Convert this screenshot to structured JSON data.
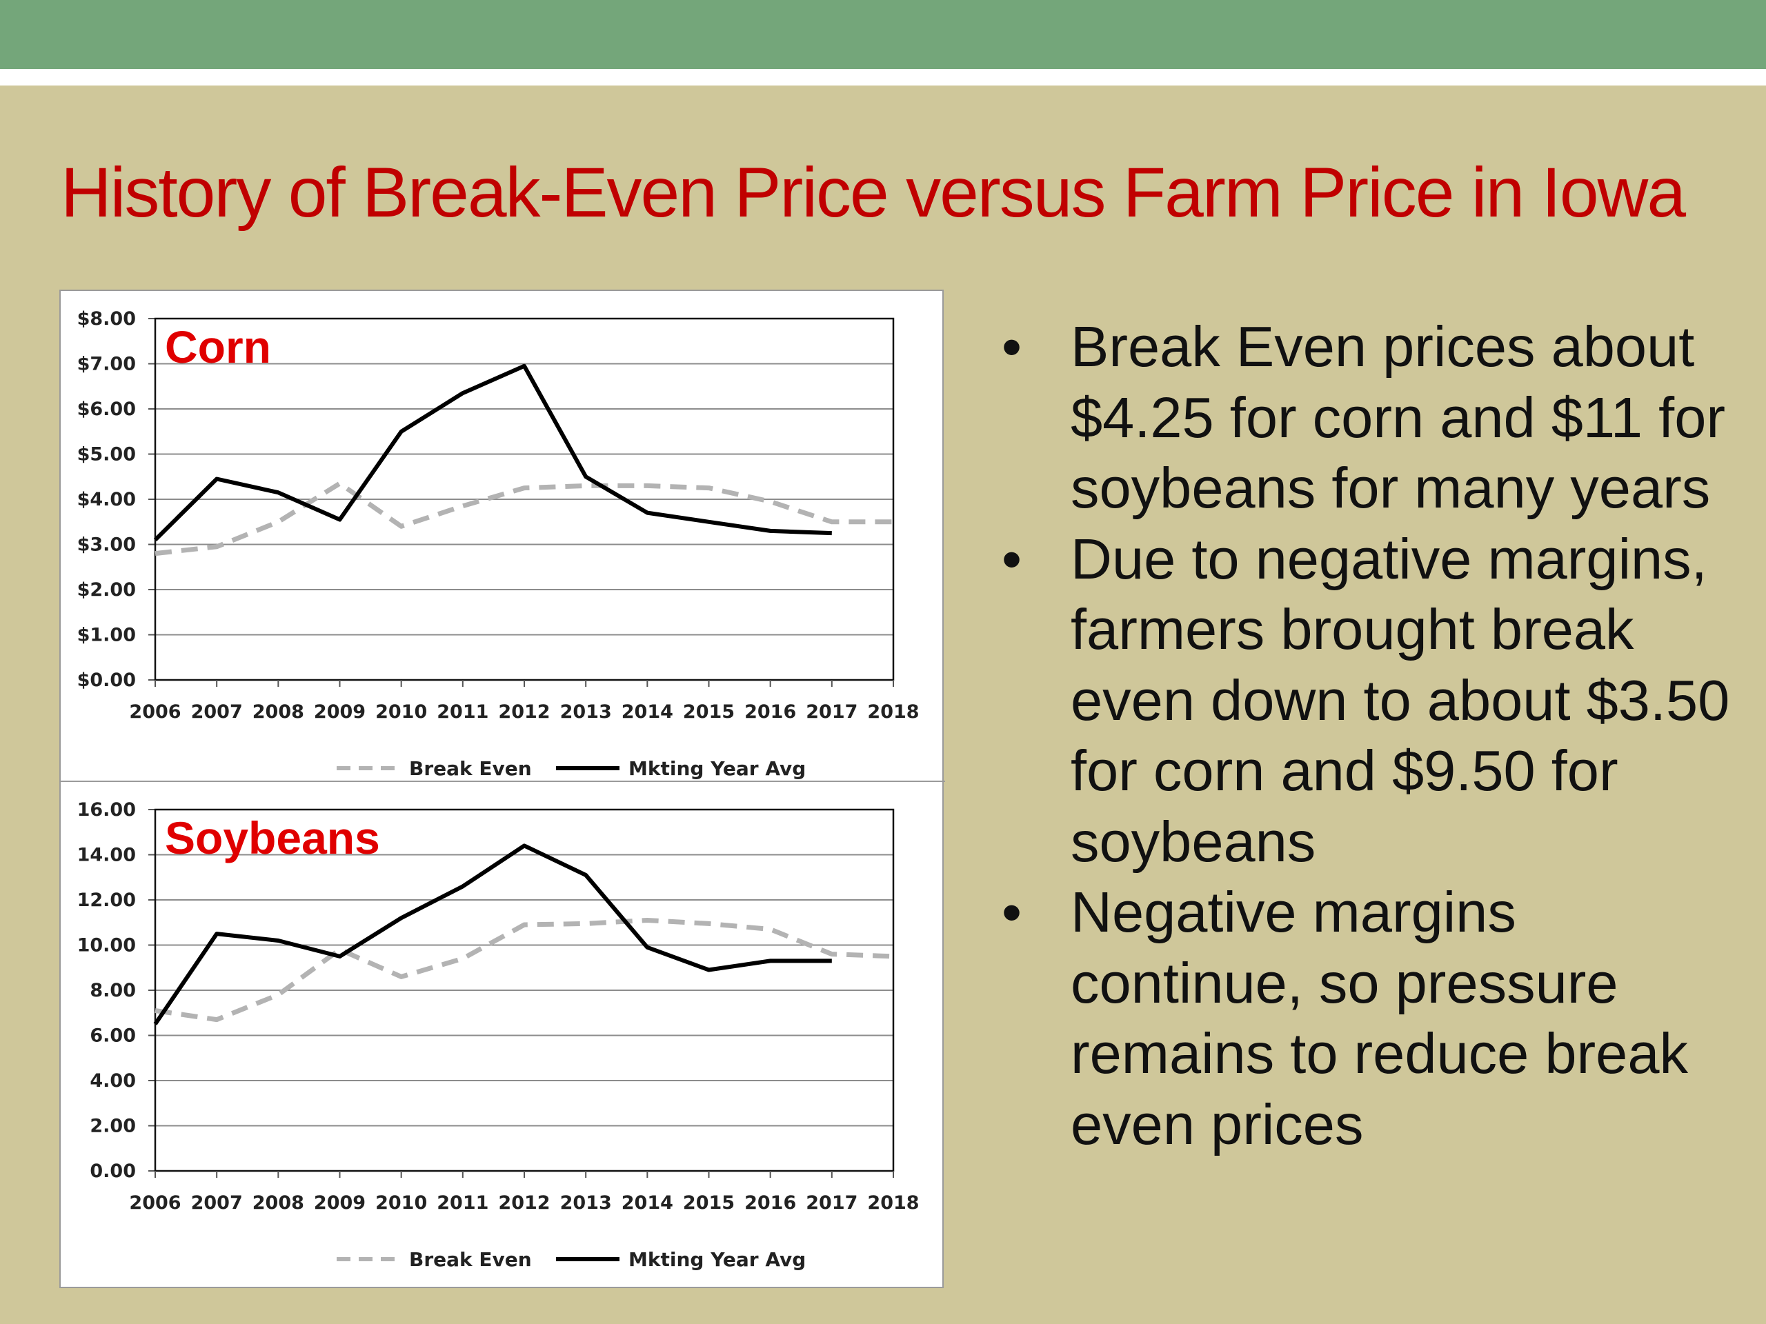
{
  "slide": {
    "title": "History of Break-Even Price versus Farm Price in Iowa",
    "bullets": [
      "Break Even prices about $4.25 for corn and $11 for soybeans for many years",
      "Due to negative margins, farmers brought break even down to about $3.50 for corn and $9.50 for soybeans",
      "Negative margins continue, so pressure remains to reduce break even prices"
    ],
    "bullet_char": "•"
  },
  "colors": {
    "background": "#cfc79a",
    "top_band": "#74a67a",
    "title": "#c00000",
    "chart_label": "#e00000",
    "break_even": "#b3b3b3",
    "market_avg": "#000000"
  },
  "chart_data": [
    {
      "type": "line",
      "label": "Corn",
      "categories": [
        "2006",
        "2007",
        "2008",
        "2009",
        "2010",
        "2011",
        "2012",
        "2013",
        "2014",
        "2015",
        "2016",
        "2017",
        "2018"
      ],
      "y_tick_labels": [
        "$0.00",
        "$1.00",
        "$2.00",
        "$3.00",
        "$4.00",
        "$5.00",
        "$6.00",
        "$7.00",
        "$8.00"
      ],
      "ylim": [
        0,
        8
      ],
      "grid": true,
      "legend_position": "bottom",
      "series": [
        {
          "name": "Break Even",
          "style": "dashed",
          "values": [
            2.8,
            2.95,
            3.5,
            4.35,
            3.4,
            3.85,
            4.25,
            4.3,
            4.3,
            4.25,
            3.95,
            3.5,
            3.5
          ]
        },
        {
          "name": "Mkting Year Avg",
          "style": "solid",
          "values": [
            3.1,
            4.45,
            4.15,
            3.55,
            5.5,
            6.35,
            6.95,
            4.5,
            3.7,
            3.5,
            3.3,
            3.25,
            null
          ]
        }
      ]
    },
    {
      "type": "line",
      "label": "Soybeans",
      "categories": [
        "2006",
        "2007",
        "2008",
        "2009",
        "2010",
        "2011",
        "2012",
        "2013",
        "2014",
        "2015",
        "2016",
        "2017",
        "2018"
      ],
      "y_tick_labels": [
        "0.00",
        "2.00",
        "4.00",
        "6.00",
        "8.00",
        "10.00",
        "12.00",
        "14.00",
        "16.00"
      ],
      "ylim": [
        0,
        16
      ],
      "grid": true,
      "legend_position": "bottom",
      "series": [
        {
          "name": "Break Even",
          "style": "dashed",
          "values": [
            7.1,
            6.7,
            7.8,
            9.8,
            8.6,
            9.4,
            10.9,
            10.95,
            11.1,
            10.95,
            10.7,
            9.6,
            9.5
          ]
        },
        {
          "name": "Mkting Year Avg",
          "style": "solid",
          "values": [
            6.5,
            10.5,
            10.2,
            9.5,
            11.2,
            12.6,
            14.4,
            13.1,
            9.9,
            8.9,
            9.3,
            9.3,
            null
          ]
        }
      ]
    }
  ]
}
